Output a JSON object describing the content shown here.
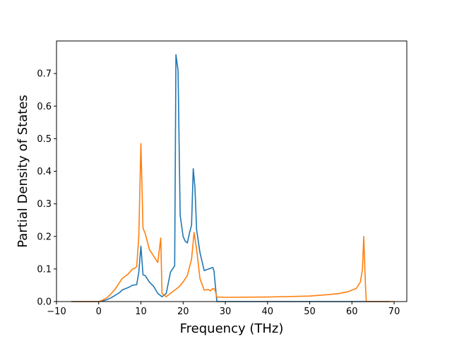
{
  "chart_data": {
    "type": "line",
    "title": "",
    "xlabel": "Frequency (THz)",
    "ylabel": "Partial Density of States",
    "xlim": [
      -10,
      73
    ],
    "ylim": [
      0,
      0.8
    ],
    "xticks": [
      -10,
      0,
      10,
      20,
      30,
      40,
      50,
      60,
      70
    ],
    "xtick_labels": [
      "−10",
      "0",
      "10",
      "20",
      "30",
      "40",
      "50",
      "60",
      "70"
    ],
    "yticks": [
      0,
      0.1,
      0.2,
      0.3,
      0.4,
      0.5,
      0.6,
      0.7
    ],
    "ytick_labels": [
      "0.0",
      "0.1",
      "0.2",
      "0.3",
      "0.4",
      "0.5",
      "0.6",
      "0.7"
    ],
    "grid": false,
    "legend": "none",
    "series": [
      {
        "color": "#1f77b4",
        "x": [
          -6.5,
          0,
          1,
          2,
          3,
          4,
          5,
          5.5,
          6,
          7,
          8,
          9,
          9.5,
          10,
          10.5,
          11,
          12,
          13,
          14,
          15,
          16,
          17,
          17.5,
          18,
          18.3,
          18.8,
          19.3,
          20,
          20.5,
          21,
          21.5,
          22,
          22.4,
          22.8,
          23.2,
          24,
          25,
          26,
          26.5,
          27,
          27.3,
          28,
          35,
          45,
          55,
          62,
          64,
          69
        ],
        "y": [
          0,
          0,
          0.002,
          0.006,
          0.012,
          0.02,
          0.028,
          0.035,
          0.038,
          0.043,
          0.05,
          0.052,
          0.09,
          0.17,
          0.082,
          0.08,
          0.06,
          0.047,
          0.025,
          0.015,
          0.025,
          0.09,
          0.1,
          0.11,
          0.758,
          0.71,
          0.265,
          0.2,
          0.185,
          0.18,
          0.21,
          0.235,
          0.408,
          0.35,
          0.22,
          0.15,
          0.095,
          0.1,
          0.102,
          0.105,
          0.095,
          0,
          0,
          0,
          0,
          0,
          0,
          0
        ]
      },
      {
        "color": "#ff7f0e",
        "x": [
          -6.5,
          0,
          1,
          2,
          3,
          4,
          5,
          5.5,
          6,
          7,
          8,
          8.5,
          9,
          9.5,
          10,
          10.5,
          11,
          12,
          13,
          14,
          14.7,
          15,
          16,
          17,
          18,
          19,
          20,
          21,
          22,
          22.6,
          23.2,
          24,
          25,
          26,
          26.5,
          27,
          27.5,
          28,
          30,
          40,
          50,
          55,
          57,
          59,
          60,
          61,
          62,
          62.5,
          62.8,
          63.2,
          63.4,
          70
        ],
        "y": [
          0,
          0,
          0.005,
          0.012,
          0.025,
          0.04,
          0.06,
          0.07,
          0.075,
          0.085,
          0.1,
          0.102,
          0.107,
          0.2,
          0.485,
          0.225,
          0.21,
          0.16,
          0.14,
          0.12,
          0.195,
          0.025,
          0.015,
          0.025,
          0.035,
          0.045,
          0.06,
          0.08,
          0.13,
          0.212,
          0.16,
          0.07,
          0.035,
          0.037,
          0.033,
          0.04,
          0.038,
          0.014,
          0.013,
          0.014,
          0.017,
          0.022,
          0.025,
          0.03,
          0.035,
          0.04,
          0.06,
          0.1,
          0.2,
          0.05,
          0,
          0
        ]
      }
    ]
  }
}
